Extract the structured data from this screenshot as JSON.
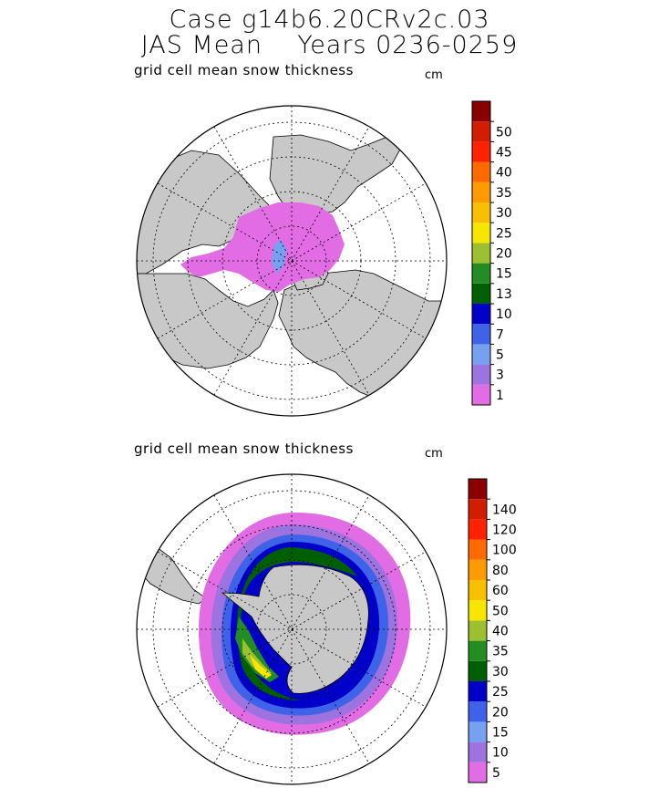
{
  "title": {
    "line1": "Case g14b6.20CRv2c.03",
    "line2": "JAS Mean    Years 0236-0259"
  },
  "panels": [
    {
      "id": "north",
      "label": "grid cell mean snow thickness",
      "unit": "cm",
      "levels": [
        "1",
        "3",
        "5",
        "7",
        "10",
        "13",
        "15",
        "20",
        "25",
        "30",
        "35",
        "40",
        "45",
        "50"
      ],
      "colors": [
        "#e26ce3",
        "#9d73e0",
        "#77a0f0",
        "#3f63e8",
        "#0000c8",
        "#005f00",
        "#238c23",
        "#9cc030",
        "#f7e600",
        "#f8c000",
        "#ff9a00",
        "#ff6a00",
        "#ff2200",
        "#d31d00",
        "#8a0000"
      ]
    },
    {
      "id": "south",
      "label": "grid cell mean snow thickness",
      "unit": "cm",
      "levels": [
        "5",
        "10",
        "15",
        "20",
        "25",
        "30",
        "35",
        "40",
        "50",
        "60",
        "80",
        "100",
        "120",
        "140"
      ],
      "colors": [
        "#e26ce3",
        "#9d73e0",
        "#77a0f0",
        "#3f63e8",
        "#0000c8",
        "#005f00",
        "#238c23",
        "#9cc030",
        "#f7e600",
        "#f8c000",
        "#ff9a00",
        "#ff6a00",
        "#ff2200",
        "#d31d00",
        "#8a0000"
      ]
    }
  ],
  "map_colors": {
    "land": "#c8c8c8",
    "ocean": "#ffffff"
  }
}
